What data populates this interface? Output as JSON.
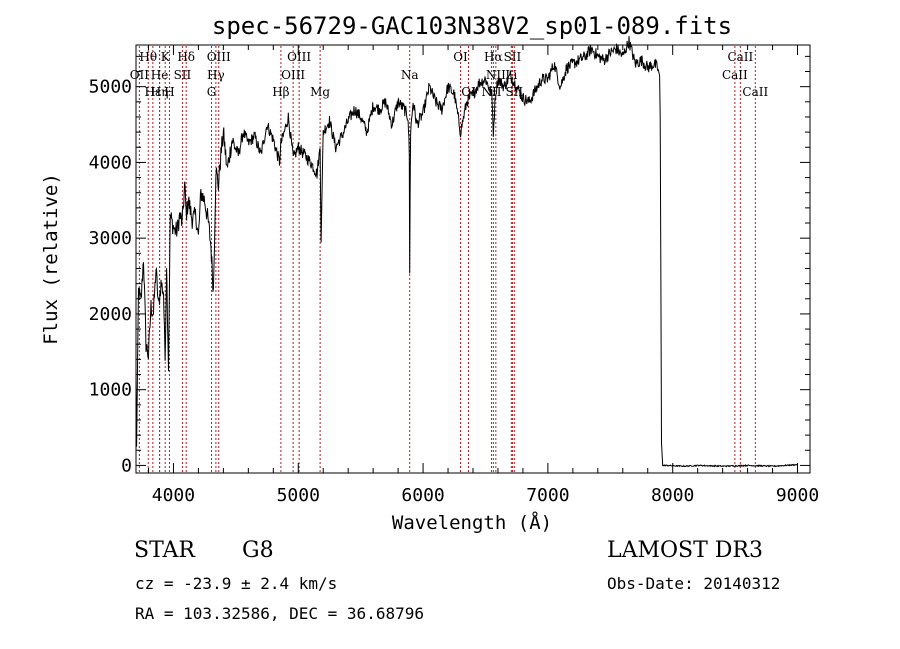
{
  "chart_data": {
    "type": "line",
    "title": "spec-56729-GAC103N38V2_sp01-089.fits",
    "xlabel": "Wavelength (Å)",
    "ylabel": "Flux (relative)",
    "xlim": [
      3700,
      9100
    ],
    "ylim": [
      -100,
      5550
    ],
    "x_ticks": [
      4000,
      5000,
      6000,
      7000,
      8000,
      9000
    ],
    "y_ticks": [
      0,
      1000,
      2000,
      3000,
      4000,
      5000
    ],
    "series": [
      {
        "name": "flux",
        "color": "#000000",
        "x": [
          3700,
          3705,
          3720,
          3740,
          3760,
          3780,
          3800,
          3820,
          3840,
          3860,
          3880,
          3900,
          3920,
          3933,
          3945,
          3960,
          3968,
          3975,
          3990,
          4010,
          4030,
          4050,
          4070,
          4090,
          4102,
          4120,
          4150,
          4180,
          4200,
          4220,
          4250,
          4280,
          4300,
          4320,
          4340,
          4360,
          4380,
          4400,
          4430,
          4470,
          4520,
          4560,
          4600,
          4650,
          4700,
          4750,
          4800,
          4850,
          4861,
          4880,
          4920,
          4960,
          5000,
          5050,
          5100,
          5150,
          5175,
          5183,
          5200,
          5250,
          5300,
          5350,
          5400,
          5450,
          5500,
          5550,
          5600,
          5650,
          5700,
          5750,
          5800,
          5850,
          5880,
          5890,
          5893,
          5896,
          5900,
          5920,
          5950,
          6000,
          6050,
          6100,
          6150,
          6200,
          6250,
          6300,
          6350,
          6400,
          6450,
          6500,
          6550,
          6563,
          6580,
          6600,
          6650,
          6700,
          6750,
          6800,
          6850,
          6900,
          6950,
          7000,
          7050,
          7100,
          7150,
          7200,
          7250,
          7300,
          7350,
          7400,
          7450,
          7500,
          7550,
          7600,
          7650,
          7700,
          7750,
          7800,
          7850,
          7880,
          7895,
          7900,
          7905,
          7910,
          7920,
          7950,
          8000,
          8100,
          8200,
          8300,
          8400,
          8500,
          8600,
          8700,
          8800,
          8900,
          9000
        ],
        "values": [
          1100,
          250,
          2300,
          2150,
          2750,
          1600,
          1450,
          2100,
          2000,
          2600,
          2100,
          2400,
          2300,
          1400,
          2700,
          1300,
          2500,
          3300,
          3200,
          3100,
          3100,
          3300,
          3200,
          3700,
          3300,
          3500,
          3250,
          3300,
          3000,
          3600,
          3500,
          3200,
          2900,
          2300,
          3900,
          3700,
          4100,
          4400,
          3900,
          4300,
          4100,
          4400,
          4250,
          4350,
          4100,
          4500,
          4300,
          4000,
          4250,
          4350,
          4600,
          4050,
          4200,
          4100,
          4000,
          3850,
          4200,
          3000,
          4400,
          4550,
          4200,
          4350,
          4550,
          4700,
          4600,
          4400,
          4750,
          4700,
          4800,
          4500,
          4800,
          4700,
          4600,
          4100,
          2500,
          3600,
          4400,
          4800,
          4500,
          4650,
          5000,
          4800,
          4700,
          5000,
          4900,
          4400,
          4800,
          4900,
          5050,
          5100,
          4900,
          4400,
          4900,
          5100,
          5000,
          5150,
          5000,
          4850,
          4800,
          4950,
          5100,
          5100,
          5300,
          5000,
          5250,
          5300,
          5350,
          5400,
          5500,
          5400,
          5350,
          5450,
          5500,
          5400,
          5600,
          5300,
          5350,
          5250,
          5300,
          5250,
          5150,
          4600,
          2700,
          300,
          0,
          0,
          -5,
          -10,
          0,
          -5,
          -10,
          -5,
          0,
          -5,
          -10,
          0,
          10
        ]
      }
    ],
    "spectral_lines": [
      {
        "label": "Hθ",
        "x": 3798,
        "row": 0
      },
      {
        "label": "OII",
        "x": 3727,
        "row": 1
      },
      {
        "label": "Hε",
        "x": 3835,
        "row": 2
      },
      {
        "label": "Hη",
        "x": 3889,
        "row": 2
      },
      {
        "label": "He",
        "x": 3889,
        "row": 1
      },
      {
        "label": "K",
        "x": 3934,
        "row": 0
      },
      {
        "label": "H",
        "x": 3968,
        "row": 2
      },
      {
        "label": "SII",
        "x": 4072,
        "row": 1
      },
      {
        "label": "Hδ",
        "x": 4102,
        "row": 0
      },
      {
        "label": "G",
        "x": 4305,
        "row": 2
      },
      {
        "label": "Hγ",
        "x": 4340,
        "row": 1
      },
      {
        "label": "OIII",
        "x": 4363,
        "row": 0
      },
      {
        "label": "Hβ",
        "x": 4861,
        "row": 2
      },
      {
        "label": "OIII",
        "x": 4959,
        "row": 1
      },
      {
        "label": "OIII",
        "x": 5007,
        "row": 0
      },
      {
        "label": "Mg",
        "x": 5175,
        "row": 2
      },
      {
        "label": "Na",
        "x": 5893,
        "row": 1
      },
      {
        "label": "OI",
        "x": 6300,
        "row": 0
      },
      {
        "label": "OI",
        "x": 6364,
        "row": 2
      },
      {
        "label": "NII",
        "x": 6548,
        "row": 2
      },
      {
        "label": "Hα",
        "x": 6563,
        "row": 0
      },
      {
        "label": "NII",
        "x": 6583,
        "row": 1
      },
      {
        "label": "Li",
        "x": 6707,
        "row": 1
      },
      {
        "label": "SII",
        "x": 6716,
        "row": 0
      },
      {
        "label": "SII",
        "x": 6731,
        "row": 2
      },
      {
        "label": "CaII",
        "x": 8498,
        "row": 1
      },
      {
        "label": "CaII",
        "x": 8542,
        "row": 0
      },
      {
        "label": "CaII",
        "x": 8662,
        "row": 2
      }
    ],
    "line_color": "#b02020"
  },
  "info": {
    "class_label": "STAR",
    "subclass": "G8",
    "survey": "LAMOST DR3",
    "velocity": "cz = -23.9 ± 2.4 km/s",
    "obs_date": "Obs-Date: 20140312",
    "coords": "RA = 103.32586, DEC =  36.68796"
  }
}
